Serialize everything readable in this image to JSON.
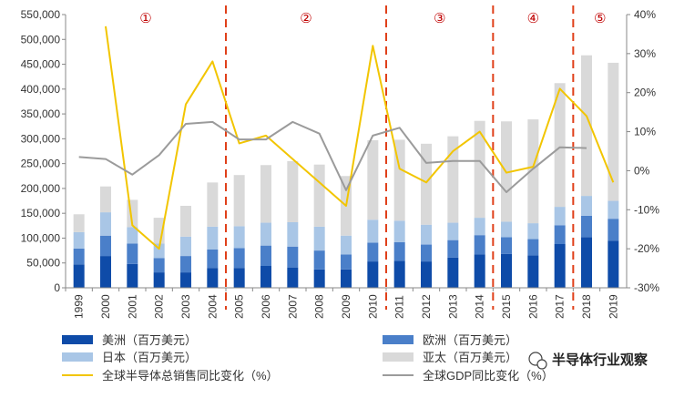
{
  "chart_data": {
    "type": "bar",
    "categories": [
      "1999",
      "2000",
      "2001",
      "2002",
      "2003",
      "2004",
      "2005",
      "2006",
      "2007",
      "2008",
      "2009",
      "2010",
      "2011",
      "2012",
      "2013",
      "2014",
      "2015",
      "2016",
      "2017",
      "2018",
      "2019"
    ],
    "stack_order": [
      "americas",
      "europe",
      "japan",
      "apac"
    ],
    "series": [
      {
        "key": "americas",
        "name": "美洲（百万美元）",
        "chart": "bar",
        "axis": "left",
        "color": "#0e4ba8",
        "values": [
          47000,
          64000,
          48000,
          31000,
          31000,
          40000,
          40000,
          44000,
          41000,
          37000,
          37000,
          53000,
          54000,
          53000,
          61000,
          67000,
          68000,
          65000,
          88000,
          102000,
          95000
        ]
      },
      {
        "key": "europe",
        "name": "欧洲（百万美元）",
        "chart": "bar",
        "axis": "left",
        "color": "#4a7fc9",
        "values": [
          32000,
          41000,
          41000,
          29000,
          33000,
          37000,
          40000,
          41000,
          42000,
          38000,
          30000,
          38000,
          38000,
          34000,
          35000,
          39000,
          34000,
          33000,
          38000,
          43000,
          44000
        ]
      },
      {
        "key": "japan",
        "name": "日本（百万美元）",
        "chart": "bar",
        "axis": "left",
        "color": "#a9c6e6",
        "values": [
          33000,
          47000,
          33000,
          29000,
          39000,
          46000,
          44000,
          46000,
          49000,
          48000,
          38000,
          46000,
          43000,
          40000,
          35000,
          35000,
          31000,
          32000,
          37000,
          40000,
          36000
        ]
      },
      {
        "key": "apac",
        "name": "亚太（百万美元）",
        "chart": "bar",
        "axis": "left",
        "color": "#d9d9d9",
        "values": [
          36000,
          52000,
          55000,
          52000,
          62000,
          89000,
          103000,
          116000,
          123000,
          125000,
          120000,
          160000,
          163000,
          163000,
          174000,
          195000,
          202000,
          209000,
          249000,
          283000,
          278000
        ]
      },
      {
        "key": "semi_growth",
        "name": "全球半导体总销售同比变化（%）",
        "chart": "line",
        "axis": "right",
        "color": "#f2c500",
        "values": [
          null,
          37,
          -14,
          -20,
          17,
          28,
          7,
          9,
          3,
          -3,
          -9,
          32,
          0.5,
          -3,
          5,
          10,
          -0.5,
          1,
          21,
          14,
          -3
        ]
      },
      {
        "key": "gdp_growth",
        "name": "全球GDP同比变化（%）",
        "chart": "line",
        "axis": "right",
        "color": "#9b9b9b",
        "values": [
          3.5,
          3,
          -1,
          4,
          12,
          12.5,
          8,
          8,
          12.5,
          9.5,
          -5,
          9,
          11,
          2,
          2.5,
          2.5,
          -5.5,
          0.5,
          6,
          5.8,
          null
        ]
      }
    ],
    "y_left": {
      "min": 0,
      "max": 550000,
      "ticks": [
        "0",
        "50,000",
        "100,000",
        "150,000",
        "200,000",
        "250,000",
        "300,000",
        "350,000",
        "400,000",
        "450,000",
        "500,000",
        "550,000"
      ]
    },
    "y_right": {
      "min": -30,
      "max": 40,
      "ticks": [
        "-30%",
        "-20%",
        "-10%",
        "0%",
        "10%",
        "20%",
        "30%",
        "40%"
      ]
    },
    "period_dividers_after": [
      "2004",
      "2010",
      "2014",
      "2017"
    ],
    "divider_color": "#e0401a",
    "periods": [
      {
        "label": "①",
        "from": "1999",
        "to": "2004"
      },
      {
        "label": "②",
        "from": "2004",
        "to": "2010"
      },
      {
        "label": "③",
        "from": "2010",
        "to": "2014"
      },
      {
        "label": "④",
        "from": "2014",
        "to": "2017"
      },
      {
        "label": "⑤",
        "from": "2017",
        "to": "2019"
      }
    ],
    "grid": false,
    "legend_position": "bottom"
  },
  "watermark": {
    "text": "半导体行业观察",
    "icon": "wechat-icon"
  }
}
